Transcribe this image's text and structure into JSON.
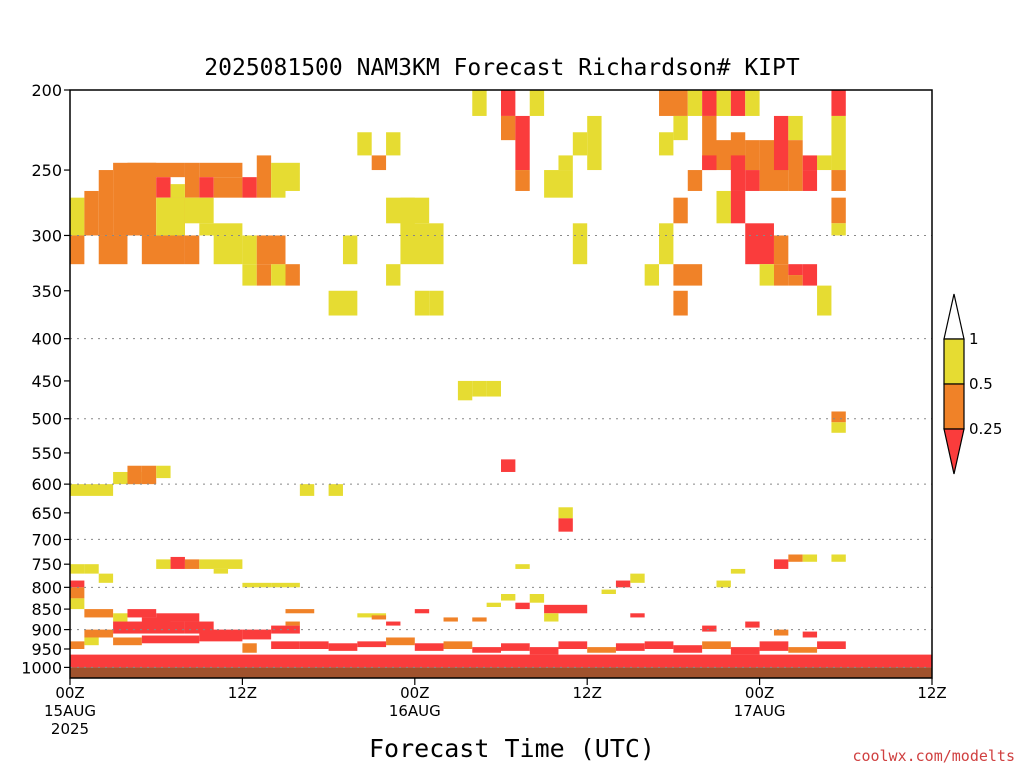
{
  "chart_data": {
    "type": "heatmap",
    "title": "2025081500 NAM3KM Forecast Richardson# KIPT",
    "xlabel": "Forecast Time (UTC)",
    "ylabel": "",
    "y_scale": "log-pressure",
    "y_inverted": true,
    "ylim": [
      1030,
      200
    ],
    "xlim_hours": [
      0,
      60
    ],
    "y_ticks": [
      200,
      250,
      300,
      350,
      400,
      450,
      500,
      550,
      600,
      650,
      700,
      750,
      800,
      850,
      900,
      950,
      1000
    ],
    "y_gridlines": [
      300,
      400,
      500,
      600,
      700,
      800,
      900,
      1000
    ],
    "x_ticks": [
      {
        "hour": 0,
        "labels": [
          "00Z",
          "15AUG",
          "2025"
        ]
      },
      {
        "hour": 12,
        "labels": [
          "12Z"
        ]
      },
      {
        "hour": 24,
        "labels": [
          "00Z",
          "16AUG"
        ]
      },
      {
        "hour": 36,
        "labels": [
          "12Z"
        ]
      },
      {
        "hour": 48,
        "labels": [
          "00Z",
          "17AUG"
        ]
      },
      {
        "hour": 60,
        "labels": [
          "12Z"
        ]
      }
    ],
    "colorbar": {
      "levels": [
        "1",
        "0.5",
        "0.25"
      ],
      "colors": {
        "ri_gt_1": "#ffffff",
        "ri_0_5_to_1": "#e6dc32",
        "ri_0_25_to_0_5": "#f08228",
        "ri_lt_0_25": "#fa3c3c"
      }
    },
    "ground_color": "#a0522d",
    "categories": [
      "0.5-1",
      "0.25-0.5",
      "<0.25"
    ],
    "cells": [
      [
        0,
        1,
        270,
        300,
        0
      ],
      [
        0,
        1,
        300,
        325,
        1
      ],
      [
        1,
        2,
        265,
        300,
        1
      ],
      [
        2,
        3,
        250,
        300,
        1
      ],
      [
        2,
        4,
        300,
        325,
        1
      ],
      [
        3,
        6,
        245,
        300,
        1
      ],
      [
        4,
        8,
        245,
        255,
        1
      ],
      [
        6,
        7,
        255,
        270,
        2
      ],
      [
        7,
        8,
        270,
        300,
        1
      ],
      [
        5,
        8,
        300,
        325,
        1
      ],
      [
        8,
        9,
        245,
        270,
        1
      ],
      [
        8,
        9,
        300,
        325,
        1
      ],
      [
        6,
        8,
        270,
        300,
        0
      ],
      [
        9,
        12,
        245,
        255,
        1
      ],
      [
        9,
        10,
        255,
        270,
        2
      ],
      [
        10,
        12,
        255,
        270,
        1
      ],
      [
        12,
        13,
        255,
        270,
        2
      ],
      [
        13,
        14,
        240,
        270,
        1
      ],
      [
        14,
        15,
        245,
        270,
        0
      ],
      [
        15,
        16,
        245,
        265,
        0
      ],
      [
        7,
        8,
        260,
        270,
        0
      ],
      [
        8,
        10,
        270,
        290,
        0
      ],
      [
        9,
        12,
        290,
        300,
        0
      ],
      [
        10,
        12,
        300,
        325,
        0
      ],
      [
        12,
        13,
        325,
        345,
        0
      ],
      [
        13,
        14,
        325,
        345,
        1
      ],
      [
        14,
        15,
        325,
        345,
        0
      ],
      [
        12,
        13,
        300,
        325,
        0
      ],
      [
        13,
        15,
        300,
        325,
        1
      ],
      [
        15,
        16,
        325,
        345,
        1
      ],
      [
        19,
        20,
        300,
        325,
        0
      ],
      [
        18,
        20,
        350,
        375,
        0
      ],
      [
        22,
        23,
        225,
        240,
        0
      ],
      [
        20,
        21,
        225,
        240,
        0
      ],
      [
        21,
        22,
        240,
        250,
        1
      ],
      [
        23,
        24,
        270,
        300,
        0
      ],
      [
        22,
        25,
        270,
        290,
        0
      ],
      [
        23,
        26,
        290,
        325,
        0
      ],
      [
        22,
        23,
        325,
        345,
        0
      ],
      [
        24,
        25,
        350,
        375,
        0
      ],
      [
        25,
        26,
        350,
        375,
        0
      ],
      [
        28,
        29,
        200,
        215,
        0
      ],
      [
        30,
        31,
        200,
        215,
        2
      ],
      [
        30,
        31,
        215,
        230,
        1
      ],
      [
        31,
        32,
        215,
        250,
        2
      ],
      [
        31,
        32,
        250,
        265,
        1
      ],
      [
        32,
        33,
        200,
        215,
        0
      ],
      [
        33,
        35,
        250,
        270,
        0
      ],
      [
        35,
        36,
        225,
        240,
        0
      ],
      [
        34,
        35,
        240,
        250,
        0
      ],
      [
        36,
        37,
        215,
        250,
        0
      ],
      [
        35,
        36,
        290,
        325,
        0
      ],
      [
        41,
        43,
        200,
        215,
        1
      ],
      [
        42,
        43,
        215,
        230,
        0
      ],
      [
        41,
        42,
        225,
        240,
        0
      ],
      [
        43,
        44,
        200,
        215,
        0
      ],
      [
        44,
        45,
        200,
        215,
        2
      ],
      [
        44,
        45,
        215,
        250,
        1
      ],
      [
        45,
        46,
        200,
        215,
        0
      ],
      [
        46,
        47,
        200,
        215,
        2
      ],
      [
        47,
        48,
        200,
        215,
        0
      ],
      [
        46,
        47,
        225,
        250,
        1
      ],
      [
        42,
        43,
        270,
        290,
        1
      ],
      [
        41,
        42,
        290,
        325,
        0
      ],
      [
        40,
        41,
        325,
        345,
        0
      ],
      [
        42,
        44,
        325,
        345,
        1
      ],
      [
        42,
        43,
        350,
        375,
        1
      ],
      [
        43,
        44,
        250,
        265,
        1
      ],
      [
        44,
        45,
        240,
        250,
        2
      ],
      [
        45,
        47,
        230,
        250,
        1
      ],
      [
        46,
        47,
        240,
        265,
        2
      ],
      [
        45,
        46,
        265,
        290,
        0
      ],
      [
        46,
        47,
        265,
        290,
        2
      ],
      [
        47,
        48,
        230,
        250,
        1
      ],
      [
        47,
        48,
        250,
        265,
        2
      ],
      [
        48,
        50,
        230,
        265,
        1
      ],
      [
        49,
        50,
        215,
        250,
        2
      ],
      [
        50,
        51,
        215,
        230,
        0
      ],
      [
        50,
        51,
        230,
        265,
        1
      ],
      [
        51,
        52,
        250,
        265,
        2
      ],
      [
        52,
        53,
        240,
        250,
        0
      ],
      [
        51,
        52,
        240,
        250,
        2
      ],
      [
        47,
        49,
        290,
        325,
        2
      ],
      [
        49,
        50,
        300,
        325,
        1
      ],
      [
        48,
        49,
        325,
        345,
        0
      ],
      [
        49,
        50,
        325,
        345,
        1
      ],
      [
        50,
        51,
        325,
        335,
        2
      ],
      [
        50,
        51,
        335,
        345,
        1
      ],
      [
        51,
        52,
        325,
        345,
        2
      ],
      [
        52,
        53,
        345,
        375,
        0
      ],
      [
        53,
        54,
        200,
        215,
        2
      ],
      [
        53,
        54,
        215,
        250,
        0
      ],
      [
        53,
        54,
        250,
        265,
        1
      ],
      [
        53,
        54,
        270,
        290,
        1
      ],
      [
        53,
        54,
        290,
        300,
        0
      ],
      [
        53,
        54,
        490,
        505,
        1
      ],
      [
        53,
        54,
        505,
        520,
        0
      ],
      [
        27,
        28,
        450,
        475,
        0
      ],
      [
        28,
        29,
        450,
        470,
        0
      ],
      [
        29,
        30,
        450,
        470,
        0
      ],
      [
        30,
        31,
        560,
        580,
        2
      ],
      [
        0,
        3,
        600,
        620,
        0
      ],
      [
        3,
        5,
        580,
        600,
        0
      ],
      [
        4,
        5,
        570,
        600,
        1
      ],
      [
        5,
        6,
        570,
        600,
        1
      ],
      [
        6,
        7,
        570,
        590,
        0
      ],
      [
        16,
        17,
        600,
        620,
        0
      ],
      [
        18,
        19,
        600,
        620,
        0
      ],
      [
        34,
        35,
        640,
        660,
        0
      ],
      [
        34,
        35,
        660,
        685,
        2
      ],
      [
        6,
        7,
        740,
        760,
        0
      ],
      [
        7,
        8,
        735,
        760,
        2
      ],
      [
        8,
        9,
        740,
        760,
        1
      ],
      [
        9,
        12,
        740,
        760,
        0
      ],
      [
        10,
        11,
        760,
        770,
        0
      ],
      [
        0,
        1,
        750,
        770,
        0
      ],
      [
        1,
        2,
        750,
        770,
        0
      ],
      [
        2,
        3,
        770,
        790,
        0
      ],
      [
        12,
        14,
        790,
        800,
        0
      ],
      [
        14,
        16,
        790,
        800,
        0
      ],
      [
        0,
        1,
        785,
        800,
        2
      ],
      [
        31,
        32,
        750,
        760,
        0
      ],
      [
        38,
        39,
        785,
        800,
        2
      ],
      [
        39,
        40,
        770,
        790,
        0
      ],
      [
        46,
        47,
        760,
        770,
        0
      ],
      [
        45,
        46,
        785,
        800,
        0
      ],
      [
        50,
        51,
        730,
        745,
        1
      ],
      [
        51,
        52,
        730,
        745,
        0
      ],
      [
        53,
        54,
        730,
        745,
        0
      ],
      [
        49,
        50,
        740,
        760,
        2
      ],
      [
        0,
        1,
        800,
        825,
        1
      ],
      [
        0,
        1,
        825,
        850,
        0
      ],
      [
        1,
        3,
        850,
        870,
        1
      ],
      [
        3,
        4,
        860,
        880,
        0
      ],
      [
        4,
        6,
        850,
        870,
        2
      ],
      [
        5,
        7,
        870,
        895,
        2
      ],
      [
        6,
        9,
        860,
        880,
        2
      ],
      [
        8,
        10,
        880,
        910,
        2
      ],
      [
        3,
        8,
        880,
        910,
        2
      ],
      [
        9,
        12,
        900,
        930,
        2
      ],
      [
        12,
        14,
        900,
        925,
        2
      ],
      [
        14,
        16,
        890,
        910,
        2
      ],
      [
        15,
        16,
        880,
        890,
        1
      ],
      [
        1,
        3,
        900,
        920,
        1
      ],
      [
        1,
        2,
        920,
        940,
        0
      ],
      [
        0,
        1,
        930,
        950,
        1
      ],
      [
        3,
        5,
        920,
        940,
        1
      ],
      [
        5,
        9,
        915,
        935,
        2
      ],
      [
        12,
        13,
        935,
        960,
        1
      ],
      [
        14,
        16,
        930,
        950,
        2
      ],
      [
        16,
        18,
        930,
        950,
        2
      ],
      [
        18,
        20,
        935,
        955,
        2
      ],
      [
        20,
        22,
        930,
        945,
        2
      ],
      [
        22,
        24,
        920,
        940,
        1
      ],
      [
        24,
        26,
        935,
        955,
        2
      ],
      [
        26,
        28,
        930,
        950,
        1
      ],
      [
        28,
        30,
        945,
        960,
        2
      ],
      [
        30,
        32,
        935,
        955,
        2
      ],
      [
        32,
        34,
        945,
        965,
        2
      ],
      [
        34,
        36,
        930,
        950,
        2
      ],
      [
        36,
        38,
        945,
        960,
        1
      ],
      [
        38,
        40,
        935,
        955,
        2
      ],
      [
        40,
        42,
        930,
        950,
        2
      ],
      [
        42,
        44,
        940,
        960,
        2
      ],
      [
        44,
        46,
        930,
        950,
        1
      ],
      [
        46,
        48,
        945,
        965,
        2
      ],
      [
        48,
        50,
        930,
        955,
        2
      ],
      [
        50,
        52,
        945,
        960,
        1
      ],
      [
        52,
        54,
        930,
        950,
        2
      ],
      [
        15,
        17,
        850,
        860,
        1
      ],
      [
        20,
        22,
        860,
        870,
        0
      ],
      [
        22,
        23,
        880,
        890,
        2
      ],
      [
        26,
        27,
        870,
        880,
        1
      ],
      [
        29,
        30,
        835,
        845,
        0
      ],
      [
        30,
        31,
        815,
        830,
        0
      ],
      [
        33,
        36,
        840,
        860,
        2
      ],
      [
        33,
        34,
        860,
        880,
        0
      ],
      [
        28,
        29,
        870,
        880,
        1
      ],
      [
        39,
        40,
        860,
        870,
        2
      ],
      [
        44,
        45,
        890,
        905,
        2
      ],
      [
        47,
        48,
        880,
        895,
        2
      ],
      [
        49,
        50,
        900,
        915,
        1
      ],
      [
        51,
        52,
        905,
        920,
        2
      ],
      [
        37,
        38,
        805,
        815,
        0
      ],
      [
        32,
        33,
        815,
        835,
        0
      ],
      [
        31,
        32,
        835,
        850,
        2
      ],
      [
        24,
        25,
        850,
        860,
        2
      ],
      [
        21,
        22,
        865,
        875,
        1
      ],
      [
        0,
        60,
        965,
        1000,
        2
      ],
      [
        0,
        60,
        1000,
        1030,
        3
      ]
    ]
  },
  "credit": "coolwx.com/modelts"
}
